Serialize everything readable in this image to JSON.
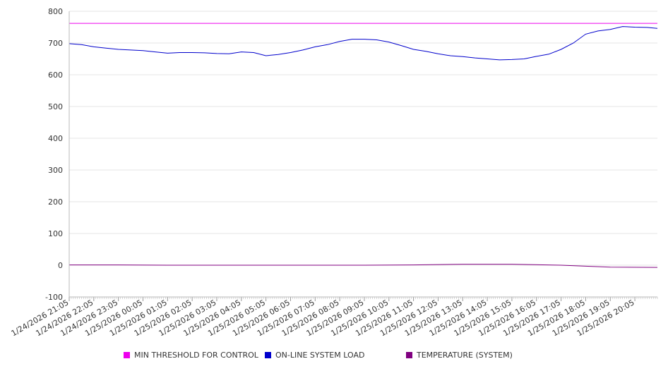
{
  "chart_data": {
    "type": "line",
    "title": "",
    "xlabel": "",
    "ylabel": "",
    "ylim": [
      -100,
      800
    ],
    "yticks": [
      -100,
      0,
      100,
      200,
      300,
      400,
      500,
      600,
      700,
      800
    ],
    "grid": true,
    "legend_position": "bottom",
    "x_range": [
      "1/24/2026 21:05",
      "1/25/2026 21:00"
    ],
    "x_tick_labels": [
      "1/24/2026 21:05",
      "1/24/2026 22:05",
      "1/24/2026 23:05",
      "1/25/2026 00:05",
      "1/25/2026 01:05",
      "1/25/2026 02:05",
      "1/25/2026 03:05",
      "1/25/2026 04:05",
      "1/25/2026 05:05",
      "1/25/2026 06:05",
      "1/25/2026 07:05",
      "1/25/2026 08:05",
      "1/25/2026 09:05",
      "1/25/2026 10:05",
      "1/25/2026 11:05",
      "1/25/2026 12:05",
      "1/25/2026 13:05",
      "1/25/2026 14:05",
      "1/25/2026 15:05",
      "1/25/2026 16:05",
      "1/25/2026 17:05",
      "1/25/2026 18:05",
      "1/25/2026 19:05",
      "1/25/2026 20:05"
    ],
    "series": [
      {
        "name": "MIN THRESHOLD FOR CONTROL",
        "color": "#ee00ee",
        "x": [
          "1/24/2026 21:05",
          "1/25/2026 21:00"
        ],
        "values": [
          762,
          762
        ]
      },
      {
        "name": "ON-LINE SYSTEM LOAD",
        "color": "#0000cc",
        "x": [
          "1/24/2026 21:05",
          "1/24/2026 21:35",
          "1/24/2026 22:05",
          "1/24/2026 22:35",
          "1/24/2026 23:05",
          "1/24/2026 23:35",
          "1/25/2026 00:05",
          "1/25/2026 00:35",
          "1/25/2026 01:05",
          "1/25/2026 01:35",
          "1/25/2026 02:05",
          "1/25/2026 02:35",
          "1/25/2026 03:05",
          "1/25/2026 03:35",
          "1/25/2026 04:05",
          "1/25/2026 04:35",
          "1/25/2026 05:05",
          "1/25/2026 05:35",
          "1/25/2026 06:05",
          "1/25/2026 06:35",
          "1/25/2026 07:05",
          "1/25/2026 07:35",
          "1/25/2026 08:05",
          "1/25/2026 08:35",
          "1/25/2026 09:05",
          "1/25/2026 09:35",
          "1/25/2026 10:05",
          "1/25/2026 10:35",
          "1/25/2026 11:05",
          "1/25/2026 11:35",
          "1/25/2026 12:05",
          "1/25/2026 12:35",
          "1/25/2026 13:05",
          "1/25/2026 13:35",
          "1/25/2026 14:05",
          "1/25/2026 14:35",
          "1/25/2026 15:05",
          "1/25/2026 15:35",
          "1/25/2026 16:05",
          "1/25/2026 16:35",
          "1/25/2026 17:05",
          "1/25/2026 17:35",
          "1/25/2026 18:05",
          "1/25/2026 18:35",
          "1/25/2026 19:05",
          "1/25/2026 19:35",
          "1/25/2026 20:05",
          "1/25/2026 20:35",
          "1/25/2026 21:00"
        ],
        "values": [
          698,
          695,
          688,
          684,
          680,
          678,
          676,
          672,
          668,
          670,
          670,
          669,
          667,
          666,
          672,
          670,
          660,
          664,
          670,
          678,
          688,
          695,
          705,
          712,
          712,
          710,
          703,
          692,
          680,
          674,
          666,
          660,
          657,
          653,
          650,
          647,
          648,
          650,
          658,
          665,
          680,
          700,
          728,
          738,
          743,
          752,
          750,
          749,
          746
        ]
      },
      {
        "name": "TEMPERATURE (SYSTEM)",
        "color": "#800080",
        "x": [
          "1/24/2026 21:05",
          "1/24/2026 23:05",
          "1/25/2026 01:05",
          "1/25/2026 03:05",
          "1/25/2026 05:05",
          "1/25/2026 07:05",
          "1/25/2026 09:05",
          "1/25/2026 11:05",
          "1/25/2026 13:05",
          "1/25/2026 15:05",
          "1/25/2026 17:05",
          "1/25/2026 19:05",
          "1/25/2026 21:00"
        ],
        "values": [
          1,
          1,
          0,
          0,
          0,
          0,
          0,
          1,
          3,
          3,
          0,
          -6,
          -7
        ]
      }
    ]
  }
}
